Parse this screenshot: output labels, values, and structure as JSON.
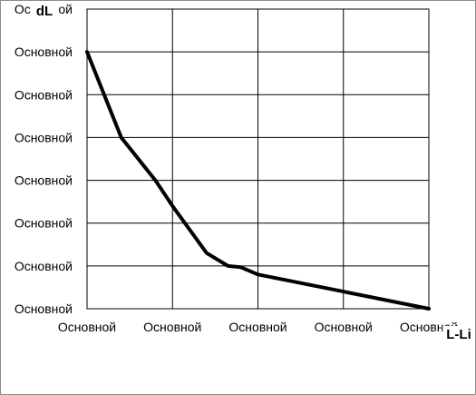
{
  "chart_data": {
    "type": "line",
    "title": "",
    "xlabel": "L-Li",
    "ylabel": "dL",
    "xlim": [
      0,
      4
    ],
    "ylim": [
      0,
      7
    ],
    "grid": true,
    "x_tick_labels": [
      "Основной",
      "Основной",
      "Основной",
      "Основной",
      "Основной"
    ],
    "y_tick_labels": [
      "Основной",
      "Основной",
      "Основной",
      "Основной",
      "Основной",
      "Основной",
      "Основной",
      "Основной"
    ],
    "series": [
      {
        "line_color": "#000000",
        "x": [
          0,
          0.4,
          0.8,
          1.0,
          1.4,
          1.65,
          1.8,
          2.0,
          3.0,
          4.0
        ],
        "y": [
          6.0,
          4.0,
          3.0,
          2.4,
          1.3,
          1.0,
          0.97,
          0.8,
          0.4,
          0.0
        ]
      }
    ]
  }
}
